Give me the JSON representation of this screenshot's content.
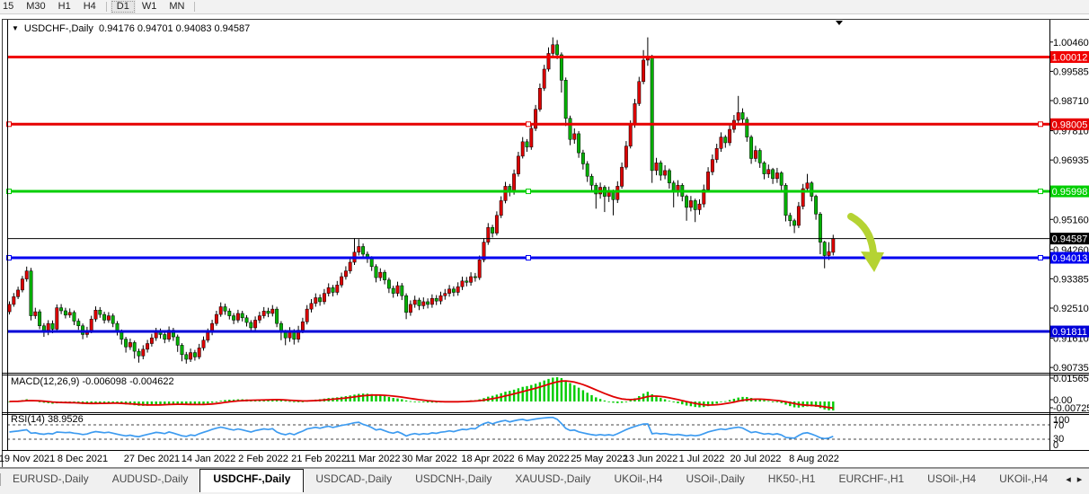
{
  "toolbar": {
    "timeframes": [
      "15",
      "M30",
      "H1",
      "H4",
      "D1",
      "W1",
      "MN"
    ],
    "active_timeframe": "D1"
  },
  "chart": {
    "title": "USDCHF-,Daily",
    "ohlc_text": "0.94176 0.94701 0.94083 0.94587",
    "open": "0.94176",
    "high": "0.94701",
    "low": "0.94083",
    "close": "0.94587"
  },
  "price_axis": {
    "plain_labels": [
      {
        "text": "1.00460",
        "value": 1.0046
      },
      {
        "text": "0.99585",
        "value": 0.99585
      },
      {
        "text": "0.98710",
        "value": 0.9871
      },
      {
        "text": "0.97810",
        "value": 0.9781
      },
      {
        "text": "0.96935",
        "value": 0.96935
      },
      {
        "text": "0.95160",
        "value": 0.9516
      },
      {
        "text": "0.94260",
        "value": 0.9426
      },
      {
        "text": "0.93385",
        "value": 0.93385
      },
      {
        "text": "0.92510",
        "value": 0.9251
      },
      {
        "text": "0.91610",
        "value": 0.9161
      },
      {
        "text": "0.90735",
        "value": 0.90735
      }
    ]
  },
  "levels": [
    {
      "value": 1.00012,
      "text": "1.00012",
      "color": "#f00000",
      "width": 3,
      "selected": false
    },
    {
      "value": 0.98005,
      "text": "0.98005",
      "color": "#e60000",
      "width": 3,
      "selected": true
    },
    {
      "value": 0.95998,
      "text": "0.95998",
      "color": "#00ce00",
      "width": 3,
      "selected": true
    },
    {
      "value": 0.94587,
      "text": "0.94587",
      "color": "#000000",
      "width": 1,
      "selected": false
    },
    {
      "value": 0.94013,
      "text": "0.94013",
      "color": "#0000f0",
      "width": 3,
      "selected": true
    },
    {
      "value": 0.91811,
      "text": "0.91811",
      "color": "#0000d8",
      "width": 3,
      "selected": false
    }
  ],
  "annotation_arrow": {
    "color": "#b5d333",
    "direction": "down-right"
  },
  "indicators": {
    "macd": {
      "name": "MACD(12,26,9)",
      "values_text": "-0.006098 -0.004622",
      "params": [
        12,
        26,
        9
      ],
      "value": -0.006098,
      "signal": -0.004622,
      "axis_labels": [
        "0.015654",
        "0.00",
        "-0.007259"
      ],
      "histogram_color": "#00cc00",
      "signal_color": "#e00000"
    },
    "rsi": {
      "name": "RSI(14)",
      "value_text": "38.9526",
      "period": 14,
      "value": 38.9526,
      "axis_labels": [
        "100",
        "70",
        "30",
        "0"
      ],
      "levels": [
        70,
        30
      ],
      "line_color": "#3d9bf0"
    }
  },
  "chart_data": {
    "type": "candlestick",
    "symbol": "USDCHF-",
    "timeframe": "Daily",
    "up_color": "#dc0000",
    "down_color": "#00b000",
    "x_labels": [
      "19 Nov 2021",
      "8 Dec 2021",
      "27 Dec 2021",
      "14 Jan 2022",
      "2 Feb 2022",
      "21 Feb 2022",
      "11 Mar 2022",
      "30 Mar 2022",
      "18 Apr 2022",
      "6 May 2022",
      "25 May 2022",
      "13 Jun 2022",
      "1 Jul 2022",
      "20 Jul 2022",
      "8 Aug 2022"
    ],
    "y_range": [
      0.906,
      1.0083
    ],
    "candles": [
      [
        0.924,
        0.9271,
        0.9232,
        0.9262
      ],
      [
        0.9262,
        0.9296,
        0.9255,
        0.9285
      ],
      [
        0.9285,
        0.9315,
        0.9278,
        0.9305
      ],
      [
        0.9305,
        0.9347,
        0.9298,
        0.9338
      ],
      [
        0.9338,
        0.9375,
        0.933,
        0.9362
      ],
      [
        0.9362,
        0.9371,
        0.9214,
        0.9228
      ],
      [
        0.9228,
        0.9252,
        0.9219,
        0.924
      ],
      [
        0.924,
        0.9247,
        0.9188,
        0.9198
      ],
      [
        0.9198,
        0.9206,
        0.9165,
        0.9178
      ],
      [
        0.9178,
        0.9215,
        0.917,
        0.9205
      ],
      [
        0.9205,
        0.9214,
        0.9176,
        0.9188
      ],
      [
        0.9188,
        0.9262,
        0.9182,
        0.9252
      ],
      [
        0.9252,
        0.9263,
        0.9233,
        0.9243
      ],
      [
        0.9243,
        0.9252,
        0.922,
        0.923
      ],
      [
        0.923,
        0.925,
        0.9222,
        0.9238
      ],
      [
        0.9238,
        0.9244,
        0.92,
        0.9212
      ],
      [
        0.9212,
        0.922,
        0.9186,
        0.9198
      ],
      [
        0.9198,
        0.9205,
        0.9158,
        0.9172
      ],
      [
        0.9172,
        0.9195,
        0.9163,
        0.9183
      ],
      [
        0.9183,
        0.9228,
        0.9176,
        0.9218
      ],
      [
        0.9218,
        0.9256,
        0.921,
        0.9245
      ],
      [
        0.9245,
        0.9254,
        0.9222,
        0.9232
      ],
      [
        0.9232,
        0.924,
        0.9205,
        0.9215
      ],
      [
        0.9215,
        0.9239,
        0.9207,
        0.9228
      ],
      [
        0.9228,
        0.9235,
        0.9194,
        0.9205
      ],
      [
        0.9205,
        0.9212,
        0.9169,
        0.918
      ],
      [
        0.918,
        0.9187,
        0.9142,
        0.9158
      ],
      [
        0.9158,
        0.9165,
        0.9118,
        0.9135
      ],
      [
        0.9135,
        0.916,
        0.9126,
        0.9148
      ],
      [
        0.9148,
        0.9154,
        0.91,
        0.9122
      ],
      [
        0.9122,
        0.913,
        0.9088,
        0.9108
      ],
      [
        0.9108,
        0.914,
        0.9098,
        0.9128
      ],
      [
        0.9128,
        0.9156,
        0.9118,
        0.9145
      ],
      [
        0.9145,
        0.9174,
        0.9136,
        0.9162
      ],
      [
        0.9162,
        0.9192,
        0.9153,
        0.918
      ],
      [
        0.918,
        0.919,
        0.916,
        0.9172
      ],
      [
        0.9172,
        0.918,
        0.9146,
        0.9158
      ],
      [
        0.9158,
        0.9196,
        0.915,
        0.9185
      ],
      [
        0.9185,
        0.9192,
        0.9153,
        0.9165
      ],
      [
        0.9165,
        0.9172,
        0.912,
        0.914
      ],
      [
        0.914,
        0.9146,
        0.9092,
        0.9112
      ],
      [
        0.9112,
        0.912,
        0.9085,
        0.9098
      ],
      [
        0.9098,
        0.913,
        0.909,
        0.9118
      ],
      [
        0.9118,
        0.9126,
        0.9094,
        0.9105
      ],
      [
        0.9105,
        0.9144,
        0.9098,
        0.9132
      ],
      [
        0.9132,
        0.9166,
        0.9124,
        0.9155
      ],
      [
        0.9155,
        0.919,
        0.9148,
        0.9178
      ],
      [
        0.9178,
        0.9216,
        0.917,
        0.9205
      ],
      [
        0.9205,
        0.9243,
        0.9198,
        0.9232
      ],
      [
        0.9232,
        0.9268,
        0.9225,
        0.9255
      ],
      [
        0.9255,
        0.9264,
        0.9231,
        0.9242
      ],
      [
        0.9242,
        0.925,
        0.9217,
        0.9228
      ],
      [
        0.9228,
        0.9236,
        0.9203,
        0.9215
      ],
      [
        0.9215,
        0.9246,
        0.9207,
        0.9235
      ],
      [
        0.9235,
        0.9243,
        0.9211,
        0.9222
      ],
      [
        0.9222,
        0.923,
        0.9196,
        0.9208
      ],
      [
        0.9208,
        0.9215,
        0.9178,
        0.9192
      ],
      [
        0.9192,
        0.9226,
        0.9184,
        0.9215
      ],
      [
        0.9215,
        0.924,
        0.9206,
        0.9228
      ],
      [
        0.9228,
        0.9254,
        0.922,
        0.9242
      ],
      [
        0.9242,
        0.9252,
        0.9224,
        0.9235
      ],
      [
        0.9235,
        0.926,
        0.9226,
        0.9248
      ],
      [
        0.9248,
        0.9255,
        0.9194,
        0.9205
      ],
      [
        0.9205,
        0.9212,
        0.9155,
        0.9178
      ],
      [
        0.9178,
        0.9186,
        0.914,
        0.9162
      ],
      [
        0.9162,
        0.9194,
        0.915,
        0.918
      ],
      [
        0.918,
        0.9188,
        0.9142,
        0.9158
      ],
      [
        0.9158,
        0.9198,
        0.9148,
        0.9185
      ],
      [
        0.9185,
        0.9222,
        0.9176,
        0.921
      ],
      [
        0.921,
        0.926,
        0.9202,
        0.9248
      ],
      [
        0.9248,
        0.9278,
        0.9238,
        0.9265
      ],
      [
        0.9265,
        0.9295,
        0.9255,
        0.9282
      ],
      [
        0.9282,
        0.9292,
        0.9258,
        0.927
      ],
      [
        0.927,
        0.9308,
        0.9262,
        0.9295
      ],
      [
        0.9295,
        0.9325,
        0.9286,
        0.9312
      ],
      [
        0.9312,
        0.932,
        0.9286,
        0.9298
      ],
      [
        0.9298,
        0.9332,
        0.929,
        0.932
      ],
      [
        0.932,
        0.9357,
        0.9312,
        0.9345
      ],
      [
        0.9345,
        0.9376,
        0.9336,
        0.9362
      ],
      [
        0.9362,
        0.94,
        0.9354,
        0.9388
      ],
      [
        0.9388,
        0.946,
        0.938,
        0.9418
      ],
      [
        0.9418,
        0.9457,
        0.9408,
        0.9435
      ],
      [
        0.9435,
        0.9444,
        0.94,
        0.9412
      ],
      [
        0.9412,
        0.942,
        0.9386,
        0.9398
      ],
      [
        0.9398,
        0.9406,
        0.9362,
        0.9375
      ],
      [
        0.9375,
        0.9382,
        0.9328,
        0.9342
      ],
      [
        0.9342,
        0.937,
        0.9332,
        0.9358
      ],
      [
        0.9358,
        0.9365,
        0.9322,
        0.9335
      ],
      [
        0.9335,
        0.9342,
        0.9296,
        0.931
      ],
      [
        0.931,
        0.9318,
        0.9282,
        0.9295
      ],
      [
        0.9295,
        0.933,
        0.9286,
        0.9318
      ],
      [
        0.9318,
        0.9326,
        0.9275,
        0.9288
      ],
      [
        0.9288,
        0.9295,
        0.9218,
        0.9238
      ],
      [
        0.9238,
        0.9274,
        0.9228,
        0.9262
      ],
      [
        0.9262,
        0.9288,
        0.9252,
        0.9275
      ],
      [
        0.9275,
        0.9282,
        0.9245,
        0.9258
      ],
      [
        0.9258,
        0.9283,
        0.9248,
        0.927
      ],
      [
        0.927,
        0.928,
        0.925,
        0.9262
      ],
      [
        0.9262,
        0.9292,
        0.9252,
        0.928
      ],
      [
        0.928,
        0.929,
        0.926,
        0.9272
      ],
      [
        0.9272,
        0.93,
        0.9262,
        0.9288
      ],
      [
        0.9288,
        0.9308,
        0.9276,
        0.9295
      ],
      [
        0.9295,
        0.932,
        0.9285,
        0.9308
      ],
      [
        0.9308,
        0.9316,
        0.9286,
        0.9298
      ],
      [
        0.9298,
        0.9328,
        0.9288,
        0.9315
      ],
      [
        0.9315,
        0.9345,
        0.9305,
        0.9332
      ],
      [
        0.9332,
        0.9344,
        0.9316,
        0.9328
      ],
      [
        0.9328,
        0.9358,
        0.9318,
        0.9345
      ],
      [
        0.9345,
        0.9356,
        0.933,
        0.9342
      ],
      [
        0.9342,
        0.9408,
        0.9335,
        0.9395
      ],
      [
        0.9395,
        0.946,
        0.9388,
        0.9448
      ],
      [
        0.9448,
        0.9505,
        0.944,
        0.9492
      ],
      [
        0.9492,
        0.95,
        0.9462,
        0.9475
      ],
      [
        0.9475,
        0.954,
        0.9468,
        0.9528
      ],
      [
        0.9528,
        0.9585,
        0.952,
        0.9572
      ],
      [
        0.9572,
        0.9628,
        0.9564,
        0.9615
      ],
      [
        0.9615,
        0.9622,
        0.9585,
        0.9598
      ],
      [
        0.9598,
        0.9665,
        0.959,
        0.9652
      ],
      [
        0.9652,
        0.9718,
        0.9644,
        0.9705
      ],
      [
        0.9705,
        0.9762,
        0.9698,
        0.9748
      ],
      [
        0.9748,
        0.9756,
        0.9718,
        0.9732
      ],
      [
        0.9732,
        0.98,
        0.9724,
        0.9788
      ],
      [
        0.9788,
        0.9858,
        0.978,
        0.9845
      ],
      [
        0.9845,
        0.9922,
        0.9838,
        0.9908
      ],
      [
        0.9908,
        0.9978,
        0.99,
        0.9965
      ],
      [
        0.9965,
        1.003,
        0.9958,
        1.0012
      ],
      [
        1.0012,
        1.006,
        1.0005,
        1.0038
      ],
      [
        1.0038,
        1.0052,
        0.9995,
        1.0008
      ],
      [
        1.0008,
        1.0015,
        0.9895,
        0.9932
      ],
      [
        0.9932,
        0.994,
        0.9795,
        0.9818
      ],
      [
        0.9818,
        0.9826,
        0.9738,
        0.9755
      ],
      [
        0.9755,
        0.9788,
        0.9742,
        0.9772
      ],
      [
        0.9772,
        0.978,
        0.97,
        0.9715
      ],
      [
        0.9715,
        0.9724,
        0.9665,
        0.9682
      ],
      [
        0.9682,
        0.969,
        0.9628,
        0.9645
      ],
      [
        0.9645,
        0.9652,
        0.96,
        0.9618
      ],
      [
        0.9618,
        0.9625,
        0.9548,
        0.9592
      ],
      [
        0.9592,
        0.9626,
        0.9578,
        0.9612
      ],
      [
        0.9612,
        0.9618,
        0.9538,
        0.9585
      ],
      [
        0.9585,
        0.9614,
        0.9568,
        0.9598
      ],
      [
        0.9598,
        0.9605,
        0.9528,
        0.9575
      ],
      [
        0.9575,
        0.963,
        0.9565,
        0.9615
      ],
      [
        0.9615,
        0.9686,
        0.9608,
        0.9672
      ],
      [
        0.9672,
        0.975,
        0.9665,
        0.9735
      ],
      [
        0.9735,
        0.9812,
        0.9728,
        0.9798
      ],
      [
        0.9798,
        0.9876,
        0.979,
        0.9862
      ],
      [
        0.9862,
        0.9942,
        0.9855,
        0.9928
      ],
      [
        0.9928,
        1.0022,
        0.992,
        0.9992
      ],
      [
        0.9992,
        1.006,
        0.9975,
        0.9998
      ],
      [
        0.9998,
        1.0008,
        0.9625,
        0.9662
      ],
      [
        0.9662,
        0.97,
        0.9648,
        0.9685
      ],
      [
        0.9685,
        0.9692,
        0.9632,
        0.9648
      ],
      [
        0.9648,
        0.9678,
        0.9636,
        0.9662
      ],
      [
        0.9662,
        0.9668,
        0.9608,
        0.9625
      ],
      [
        0.9625,
        0.9632,
        0.9552,
        0.9598
      ],
      [
        0.9598,
        0.9633,
        0.9585,
        0.9618
      ],
      [
        0.9618,
        0.9624,
        0.957,
        0.9585
      ],
      [
        0.9585,
        0.959,
        0.9512,
        0.9552
      ],
      [
        0.9552,
        0.9586,
        0.954,
        0.9572
      ],
      [
        0.9572,
        0.9578,
        0.9508,
        0.9545
      ],
      [
        0.9545,
        0.9576,
        0.953,
        0.9562
      ],
      [
        0.9562,
        0.962,
        0.9552,
        0.9605
      ],
      [
        0.9605,
        0.9672,
        0.9598,
        0.9658
      ],
      [
        0.9658,
        0.971,
        0.9648,
        0.9695
      ],
      [
        0.9695,
        0.9742,
        0.9685,
        0.9728
      ],
      [
        0.9728,
        0.9776,
        0.9718,
        0.9762
      ],
      [
        0.9762,
        0.9768,
        0.973,
        0.9745
      ],
      [
        0.9745,
        0.98,
        0.9736,
        0.9785
      ],
      [
        0.9785,
        0.9828,
        0.9775,
        0.9812
      ],
      [
        0.9812,
        0.9885,
        0.9802,
        0.9835
      ],
      [
        0.9835,
        0.9848,
        0.98,
        0.9815
      ],
      [
        0.9815,
        0.9822,
        0.9748,
        0.9762
      ],
      [
        0.9762,
        0.9768,
        0.9682,
        0.9698
      ],
      [
        0.9698,
        0.9736,
        0.9688,
        0.9722
      ],
      [
        0.9722,
        0.9728,
        0.967,
        0.9685
      ],
      [
        0.9685,
        0.969,
        0.9636,
        0.9652
      ],
      [
        0.9652,
        0.968,
        0.964,
        0.9665
      ],
      [
        0.9665,
        0.967,
        0.9622,
        0.9638
      ],
      [
        0.9638,
        0.967,
        0.9625,
        0.9655
      ],
      [
        0.9655,
        0.966,
        0.9602,
        0.9618
      ],
      [
        0.9618,
        0.9624,
        0.951,
        0.9528
      ],
      [
        0.9528,
        0.9536,
        0.9495,
        0.9512
      ],
      [
        0.9512,
        0.9518,
        0.9475,
        0.9498
      ],
      [
        0.9498,
        0.9568,
        0.949,
        0.9555
      ],
      [
        0.9555,
        0.9622,
        0.9546,
        0.9608
      ],
      [
        0.9608,
        0.9652,
        0.9596,
        0.9625
      ],
      [
        0.9625,
        0.963,
        0.957,
        0.9585
      ],
      [
        0.9585,
        0.959,
        0.9515,
        0.9532
      ],
      [
        0.9532,
        0.9538,
        0.9412,
        0.9448
      ],
      [
        0.9448,
        0.9452,
        0.937,
        0.9408
      ],
      [
        0.9408,
        0.9448,
        0.9395,
        0.942
      ],
      [
        0.94176,
        0.94701,
        0.94083,
        0.94587
      ]
    ]
  },
  "tabs": {
    "items": [
      "EURUSD-,Daily",
      "AUDUSD-,Daily",
      "USDCHF-,Daily",
      "USDCAD-,Daily",
      "USDCNH-,Daily",
      "XAUUSD-,Daily",
      "UKOil-,H4",
      "USOil-,Daily",
      "HK50-,H1",
      "EURCHF-,H1",
      "USOil-,H4",
      "UKOil-,H4"
    ],
    "active": "USDCHF-,Daily",
    "nav_left": "◂",
    "nav_right": "▸"
  }
}
